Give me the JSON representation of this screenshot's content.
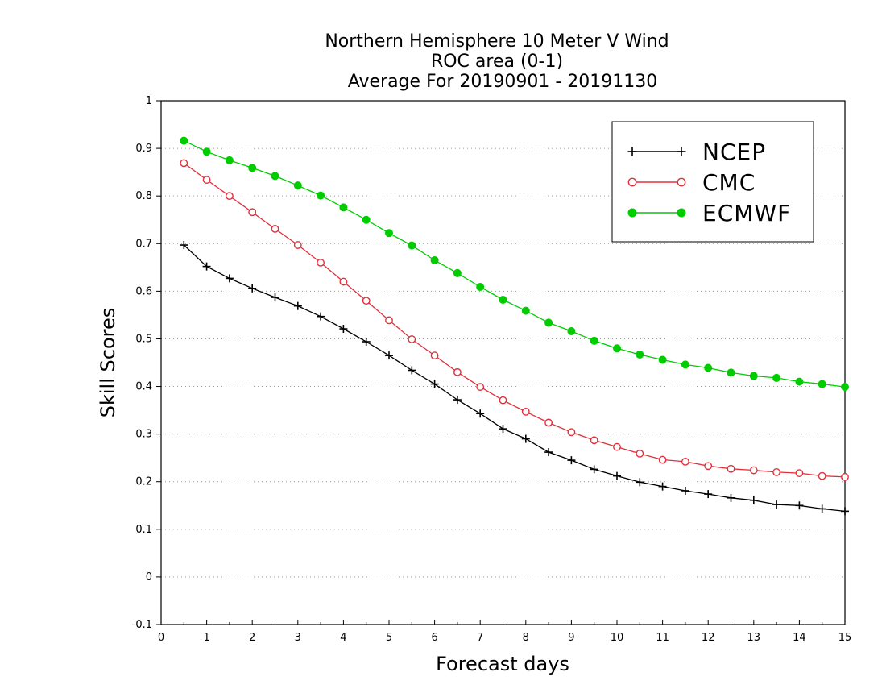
{
  "chart_data": {
    "type": "line",
    "title_lines": [
      "Northern Hemisphere 10 Meter V Wind",
      "ROC area (0-1)",
      "Average For 20190901 - 20191130"
    ],
    "xlabel": "Forecast days",
    "ylabel": "Skill Scores",
    "xlim": [
      0,
      15
    ],
    "ylim": [
      -0.1,
      1
    ],
    "x_ticks": [
      0,
      1,
      2,
      3,
      4,
      5,
      6,
      7,
      8,
      9,
      10,
      11,
      12,
      13,
      14,
      15
    ],
    "x_tick_labels": [
      "0",
      "1",
      "2",
      "3",
      "4",
      "5",
      "6",
      "7",
      "8",
      "9",
      "10",
      "11",
      "12",
      "13",
      "14",
      "15"
    ],
    "y_ticks": [
      -0.1,
      0,
      0.1,
      0.2,
      0.3,
      0.4,
      0.5,
      0.6,
      0.7,
      0.8,
      0.9,
      1
    ],
    "y_tick_labels": [
      "-0.1",
      "0",
      "0.1",
      "0.2",
      "0.3",
      "0.4",
      "0.5",
      "0.6",
      "0.7",
      "0.8",
      "0.9",
      "1"
    ],
    "grid": "horizontal dotted",
    "legend_position": "top-right",
    "x": [
      0.5,
      1,
      1.5,
      2,
      2.5,
      3,
      3.5,
      4,
      4.5,
      5,
      5.5,
      6,
      6.5,
      7,
      7.5,
      8,
      8.5,
      9,
      9.5,
      10,
      10.5,
      11,
      11.5,
      12,
      12.5,
      13,
      13.5,
      14,
      14.5,
      15
    ],
    "series": [
      {
        "name": "NCEP",
        "color": "#000000",
        "marker": "plus",
        "values": [
          0.697,
          0.652,
          0.627,
          0.606,
          0.587,
          0.569,
          0.547,
          0.521,
          0.494,
          0.465,
          0.434,
          0.405,
          0.372,
          0.343,
          0.311,
          0.29,
          0.262,
          0.245,
          0.226,
          0.212,
          0.199,
          0.19,
          0.181,
          0.174,
          0.166,
          0.161,
          0.152,
          0.15,
          0.143,
          0.138
        ]
      },
      {
        "name": "CMC",
        "color": "#e0303c",
        "marker": "open-circle",
        "values": [
          0.869,
          0.834,
          0.8,
          0.766,
          0.731,
          0.697,
          0.66,
          0.62,
          0.58,
          0.539,
          0.499,
          0.465,
          0.43,
          0.399,
          0.371,
          0.347,
          0.324,
          0.304,
          0.287,
          0.273,
          0.259,
          0.246,
          0.242,
          0.233,
          0.227,
          0.224,
          0.22,
          0.218,
          0.212,
          0.21
        ]
      },
      {
        "name": "ECMWF",
        "color": "#00cc00",
        "marker": "filled-circle",
        "values": [
          0.916,
          0.893,
          0.875,
          0.859,
          0.842,
          0.822,
          0.801,
          0.776,
          0.75,
          0.722,
          0.696,
          0.665,
          0.638,
          0.609,
          0.582,
          0.559,
          0.534,
          0.516,
          0.496,
          0.48,
          0.467,
          0.456,
          0.446,
          0.439,
          0.429,
          0.422,
          0.418,
          0.41,
          0.405,
          0.399
        ]
      }
    ]
  }
}
